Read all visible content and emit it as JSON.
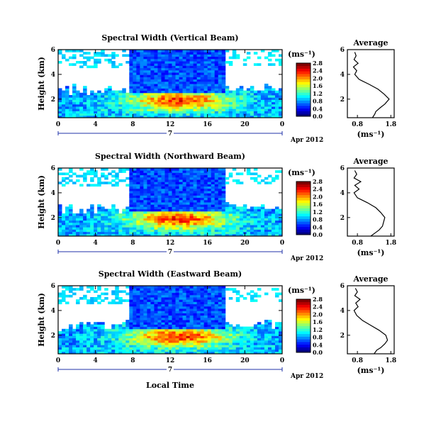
{
  "chart_data": [
    {
      "type": "heatmap",
      "title": "Spectral Width (Vertical Beam)",
      "ylabel": "Height (km)",
      "xlabel": "",
      "x_ticks": [
        "0",
        "4",
        "8",
        "12",
        "16",
        "20",
        "0"
      ],
      "y_ticks": [
        "2",
        "4",
        "6"
      ],
      "xlim": [
        0,
        24
      ],
      "ylim": [
        0.5,
        6
      ],
      "date_day": "7",
      "date_month": "Apr 2012",
      "colorbar": {
        "unit": "(ms⁻¹)",
        "ticks": [
          "0.0",
          "0.4",
          "0.8",
          "1.2",
          "1.6",
          "2.0",
          "2.4",
          "2.8"
        ]
      },
      "average": {
        "title": "Average",
        "xlabel": "(ms⁻¹)",
        "x_ticks": [
          "0.8",
          "1.8"
        ],
        "y_ticks": [
          "2",
          "4",
          "6"
        ],
        "xlim": [
          0.5,
          1.9
        ],
        "ylim": [
          0.5,
          6
        ],
        "profile_height": [
          0.5,
          0.8,
          1.0,
          1.3,
          1.6,
          2.0,
          2.4,
          2.8,
          3.2,
          3.6,
          4.0,
          4.3,
          4.6,
          4.9,
          5.2,
          5.5,
          5.8
        ],
        "profile_width": [
          1.25,
          1.32,
          1.35,
          1.48,
          1.62,
          1.75,
          1.6,
          1.42,
          1.15,
          0.85,
          0.72,
          0.78,
          0.68,
          0.82,
          0.7,
          0.76,
          0.72
        ]
      }
    },
    {
      "type": "heatmap",
      "title": "Spectral Width (Northward Beam)",
      "ylabel": "Height (km)",
      "xlabel": "",
      "x_ticks": [
        "0",
        "4",
        "8",
        "12",
        "16",
        "20",
        "0"
      ],
      "y_ticks": [
        "2",
        "4",
        "6"
      ],
      "xlim": [
        0,
        24
      ],
      "ylim": [
        0.5,
        6
      ],
      "date_day": "7",
      "date_month": "Apr 2012",
      "colorbar": {
        "unit": "(ms⁻¹)",
        "ticks": [
          "0.0",
          "0.4",
          "0.8",
          "1.2",
          "1.6",
          "2.0",
          "2.4",
          "2.8"
        ]
      },
      "average": {
        "title": "Average",
        "xlabel": "(ms⁻¹)",
        "x_ticks": [
          "0.8",
          "1.8"
        ],
        "y_ticks": [
          "2",
          "4",
          "6"
        ],
        "xlim": [
          0.5,
          1.9
        ],
        "ylim": [
          0.5,
          6
        ],
        "profile_height": [
          0.5,
          0.8,
          1.0,
          1.3,
          1.6,
          2.0,
          2.4,
          2.8,
          3.2,
          3.6,
          4.0,
          4.3,
          4.6,
          4.9,
          5.2,
          5.5,
          5.8
        ],
        "profile_width": [
          1.2,
          1.35,
          1.45,
          1.55,
          1.58,
          1.62,
          1.5,
          1.35,
          1.1,
          0.8,
          0.7,
          0.85,
          0.72,
          0.9,
          0.7,
          0.78,
          0.72
        ]
      }
    },
    {
      "type": "heatmap",
      "title": "Spectral Width (Eastward Beam)",
      "ylabel": "Height (km)",
      "xlabel": "Local Time",
      "x_ticks": [
        "0",
        "4",
        "8",
        "12",
        "16",
        "20",
        "0"
      ],
      "y_ticks": [
        "2",
        "4",
        "6"
      ],
      "xlim": [
        0,
        24
      ],
      "ylim": [
        0.5,
        6
      ],
      "date_day": "7",
      "date_month": "Apr 2012",
      "colorbar": {
        "unit": "(ms⁻¹)",
        "ticks": [
          "0.0",
          "0.4",
          "0.8",
          "1.2",
          "1.6",
          "2.0",
          "2.4",
          "2.8"
        ]
      },
      "average": {
        "title": "Average",
        "xlabel": "(ms⁻¹)",
        "x_ticks": [
          "0.8",
          "1.8"
        ],
        "y_ticks": [
          "2",
          "4",
          "6"
        ],
        "xlim": [
          0.5,
          1.9
        ],
        "ylim": [
          0.5,
          6
        ],
        "profile_height": [
          0.5,
          0.8,
          1.0,
          1.3,
          1.6,
          2.0,
          2.4,
          2.8,
          3.2,
          3.6,
          4.0,
          4.3,
          4.6,
          4.9,
          5.2,
          5.5,
          5.8
        ],
        "profile_width": [
          1.3,
          1.38,
          1.5,
          1.62,
          1.7,
          1.65,
          1.45,
          1.2,
          0.95,
          0.78,
          0.7,
          0.82,
          0.75,
          0.88,
          0.72,
          0.8,
          0.74
        ]
      }
    }
  ]
}
